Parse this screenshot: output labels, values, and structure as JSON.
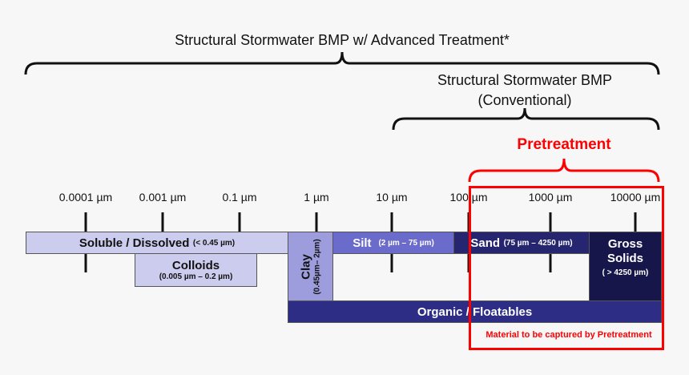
{
  "headers": {
    "advanced": "Structural Stormwater BMP w/ Advanced Treatment*",
    "conventional_line1": "Structural Stormwater BMP",
    "conventional_line2": "(Conventional)",
    "pretreatment": "Pretreatment"
  },
  "scale_ticks": [
    "0.0001 µm",
    "0.001 µm",
    "0.1 µm",
    "1 µm",
    "10 µm",
    "100 µm",
    "1000 µm",
    "10000 µm"
  ],
  "categories": {
    "soluble": {
      "name": "Soluble / Dissolved",
      "range": "(< 0.45 µm)",
      "color": "#ccccee"
    },
    "colloids": {
      "name": "Colloids",
      "range": "(0.005 µm –  0.2 µm)",
      "color": "#ccccee"
    },
    "clay": {
      "name": "Clay",
      "range": "(0.45µm– 2µm)",
      "color": "#9d9ddd"
    },
    "silt": {
      "name": "Silt",
      "range": "(2 µm –  75 µm)",
      "color": "#6b6bcc"
    },
    "sand": {
      "name": "Sand",
      "range": "(75 µm – 4250 µm)",
      "color": "#262670"
    },
    "gross": {
      "name_line1": "Gross",
      "name_line2": "Solids",
      "range": "( > 4250 µm)",
      "color": "#16164a"
    },
    "organic": {
      "name": "Organic / Floatables",
      "color": "#2d2d86"
    }
  },
  "pretreatment_box": {
    "caption": "Material  to be captured by Pretreatment",
    "color": "#ff0000"
  }
}
